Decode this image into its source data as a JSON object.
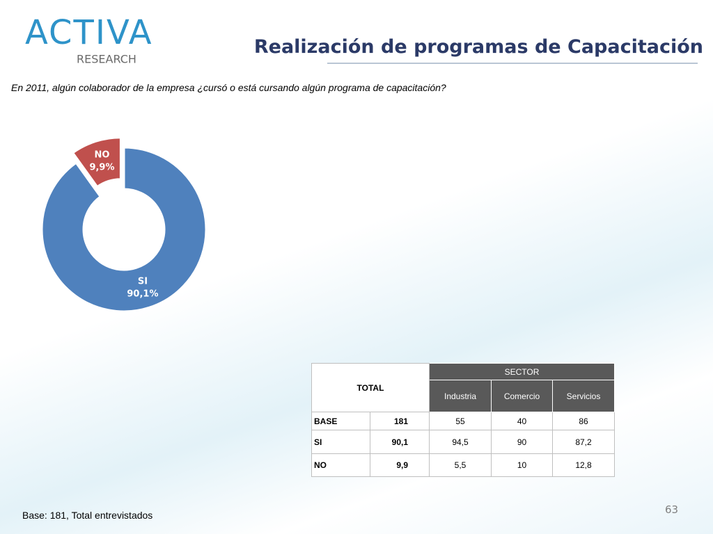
{
  "header": {
    "logo": "ACTIVA",
    "logo_sub": "RESEARCH",
    "title": "Realización de programas de Capacitación"
  },
  "question": "En 2011, algún colaborador de la empresa ¿cursó o está cursando algún programa de capacitación?",
  "chart_data": {
    "type": "donut",
    "categories": [
      "SI",
      "NO"
    ],
    "values": [
      90.1,
      9.9
    ],
    "value_labels": [
      "90,1%",
      "9,9%"
    ],
    "colors": [
      "#4f81bd",
      "#c0504d"
    ]
  },
  "table": {
    "header": {
      "total": "TOTAL",
      "sector": "SECTOR",
      "columns": [
        "Industria",
        "Comercio",
        "Servicios"
      ]
    },
    "rows": [
      [
        "BASE",
        "181",
        "55",
        "40",
        "86"
      ],
      [
        "SI",
        "90,1",
        "94,5",
        "90",
        "87,2"
      ],
      [
        "NO",
        "9,9",
        "5,5",
        "10",
        "12,8"
      ]
    ]
  },
  "footer": {
    "note": "Base: 181, Total entrevistados",
    "page": "63"
  }
}
